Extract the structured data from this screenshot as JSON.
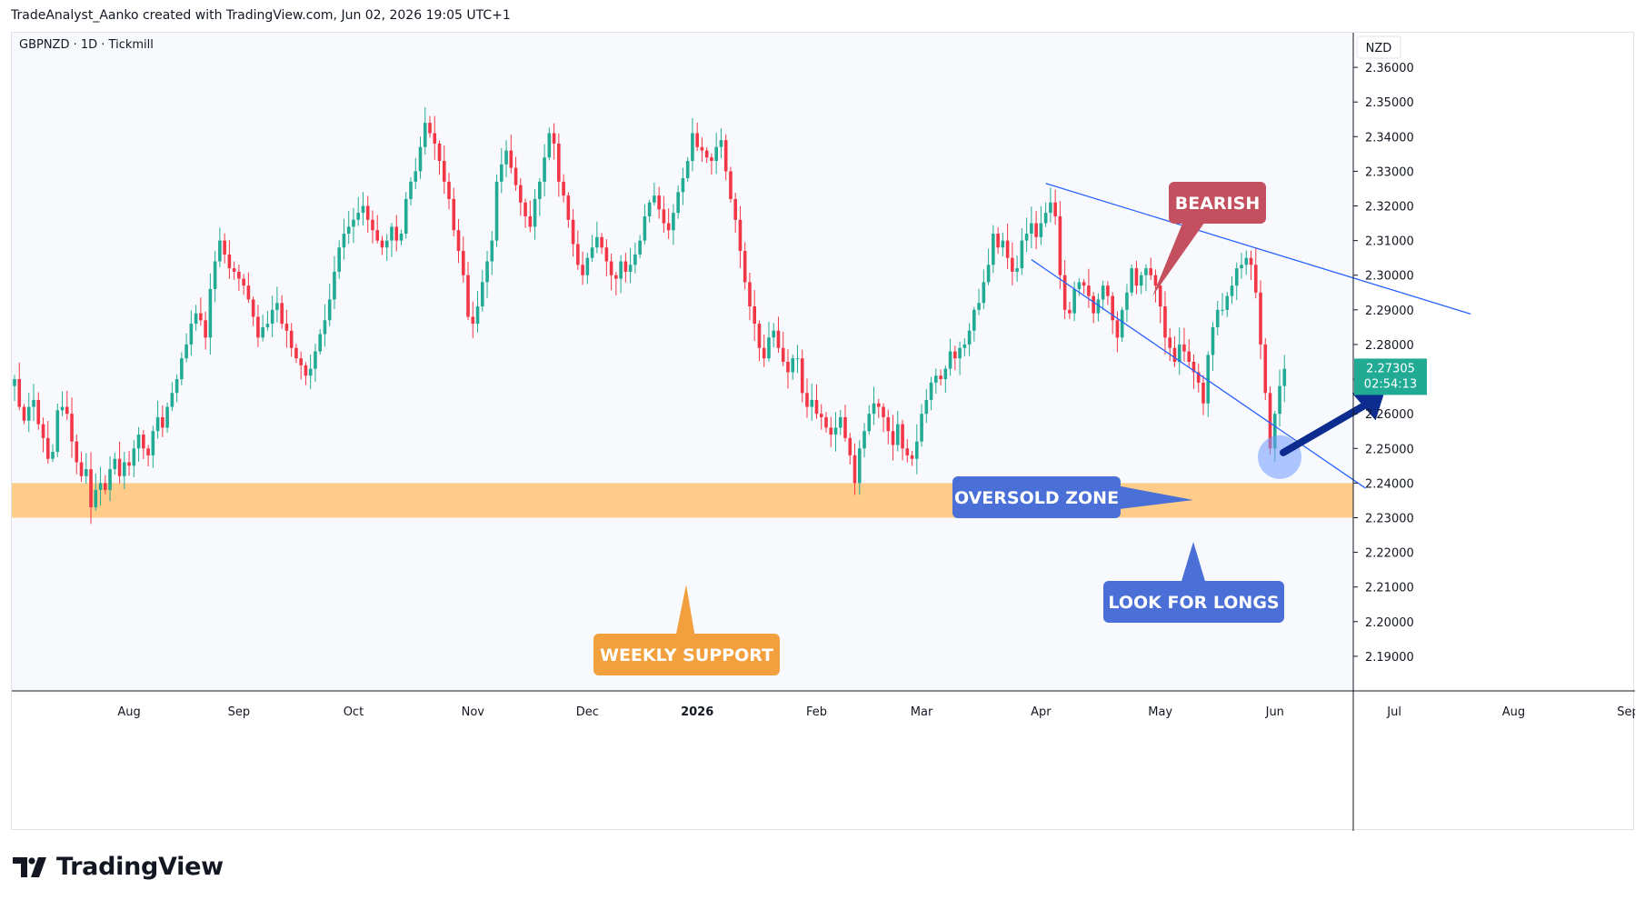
{
  "header": {
    "credit": "TradeAnalyst_Aanko created with TradingView.com, Jun 02, 2026 19:05 UTC+1"
  },
  "brand": {
    "name": "TradingView",
    "logo_icon": "tradingview-logo-icon"
  },
  "chart_data": {
    "type": "candlestick",
    "symbol_line": "GBPNZD · 1D · Tickmill",
    "currency": "NZD",
    "price_axis": {
      "range": [
        2.18,
        2.37
      ],
      "ticks": [
        "2.36000",
        "2.35000",
        "2.34000",
        "2.33000",
        "2.32000",
        "2.31000",
        "2.30000",
        "2.29000",
        "2.28000",
        "2.27000",
        "2.26000",
        "2.25000",
        "2.24000",
        "2.23000",
        "2.22000",
        "2.21000",
        "2.20000",
        "2.19000"
      ]
    },
    "time_axis": {
      "labels": [
        {
          "text": "Aug",
          "bar": 24,
          "bold": false
        },
        {
          "text": "Sep",
          "bar": 47,
          "bold": false
        },
        {
          "text": "Oct",
          "bar": 71,
          "bold": false
        },
        {
          "text": "Nov",
          "bar": 96,
          "bold": false
        },
        {
          "text": "Dec",
          "bar": 120,
          "bold": false
        },
        {
          "text": "2026",
          "bar": 143,
          "bold": true
        },
        {
          "text": "Feb",
          "bar": 168,
          "bold": false
        },
        {
          "text": "Mar",
          "bar": 190,
          "bold": false
        },
        {
          "text": "Apr",
          "bar": 215,
          "bold": false
        },
        {
          "text": "May",
          "bar": 240,
          "bold": false
        },
        {
          "text": "Jun",
          "bar": 264,
          "bold": false
        },
        {
          "text": "Jul",
          "bar": 289,
          "bold": false
        },
        {
          "text": "Aug",
          "bar": 314,
          "bold": false
        },
        {
          "text": "Sep",
          "bar": 338,
          "bold": false
        }
      ],
      "total_slots": 340
    },
    "last_price": {
      "price": 2.27305,
      "label": "2.27305",
      "countdown": "02:54:13",
      "color": "#22ab94"
    },
    "colors": {
      "up": "#22ab94",
      "down": "#f23645",
      "trendline": "#2962ff",
      "zone": "#ffcc8a"
    },
    "close_series": [
      2.27,
      2.262,
      2.258,
      2.262,
      2.264,
      2.257,
      2.253,
      2.247,
      2.249,
      2.261,
      2.262,
      2.26,
      2.252,
      2.246,
      2.242,
      2.244,
      2.233,
      2.238,
      2.24,
      2.238,
      2.244,
      2.247,
      2.242,
      2.246,
      2.245,
      2.25,
      2.254,
      2.25,
      2.248,
      2.255,
      2.259,
      2.256,
      2.262,
      2.266,
      2.27,
      2.276,
      2.28,
      2.286,
      2.289,
      2.287,
      2.282,
      2.296,
      2.304,
      2.31,
      2.306,
      2.302,
      2.301,
      2.299,
      2.297,
      2.293,
      2.288,
      2.282,
      2.285,
      2.286,
      2.29,
      2.292,
      2.286,
      2.284,
      2.279,
      2.276,
      2.274,
      2.271,
      2.273,
      2.278,
      2.283,
      2.287,
      2.293,
      2.301,
      2.308,
      2.312,
      2.314,
      2.316,
      2.318,
      2.32,
      2.316,
      2.313,
      2.31,
      2.308,
      2.31,
      2.314,
      2.31,
      2.312,
      2.322,
      2.327,
      2.33,
      2.337,
      2.344,
      2.341,
      2.338,
      2.333,
      2.327,
      2.322,
      2.313,
      2.307,
      2.3,
      2.288,
      2.286,
      2.291,
      2.298,
      2.304,
      2.31,
      2.327,
      2.332,
      2.336,
      2.331,
      2.326,
      2.321,
      2.317,
      2.314,
      2.322,
      2.327,
      2.334,
      2.341,
      2.338,
      2.327,
      2.323,
      2.316,
      2.309,
      2.303,
      2.3,
      2.305,
      2.308,
      2.311,
      2.308,
      2.304,
      2.3,
      2.299,
      2.304,
      2.301,
      2.303,
      2.306,
      2.31,
      2.317,
      2.321,
      2.323,
      2.319,
      2.315,
      2.313,
      2.318,
      2.324,
      2.328,
      2.333,
      2.341,
      2.337,
      2.336,
      2.334,
      2.333,
      2.337,
      2.339,
      2.33,
      2.322,
      2.316,
      2.307,
      2.298,
      2.291,
      2.286,
      2.279,
      2.276,
      2.282,
      2.284,
      2.279,
      2.275,
      2.272,
      2.276,
      2.276,
      2.266,
      2.262,
      2.264,
      2.26,
      2.259,
      2.256,
      2.254,
      2.256,
      2.259,
      2.253,
      2.248,
      2.24,
      2.25,
      2.255,
      2.26,
      2.263,
      2.262,
      2.259,
      2.255,
      2.251,
      2.257,
      2.25,
      2.248,
      2.247,
      2.252,
      2.26,
      2.264,
      2.269,
      2.271,
      2.27,
      2.273,
      2.278,
      2.276,
      2.279,
      2.28,
      2.284,
      2.29,
      2.292,
      2.298,
      2.303,
      2.312,
      2.308,
      2.31,
      2.305,
      2.301,
      2.302,
      2.31,
      2.312,
      2.315,
      2.311,
      2.315,
      2.318,
      2.321,
      2.317,
      2.3,
      2.29,
      2.289,
      2.296,
      2.298,
      2.297,
      2.294,
      2.289,
      2.293,
      2.297,
      2.294,
      2.287,
      2.282,
      2.29,
      2.295,
      2.302,
      2.297,
      2.3,
      2.302,
      2.3,
      2.297,
      2.291,
      2.282,
      2.279,
      2.275,
      2.28,
      2.278,
      2.275,
      2.272,
      2.269,
      2.263,
      2.277,
      2.285,
      2.29,
      2.29,
      2.294,
      2.297,
      2.302,
      2.303,
      2.305,
      2.303,
      2.295,
      2.28,
      2.266,
      2.25,
      2.26,
      2.268,
      2.273
    ]
  },
  "annotations": {
    "bearish": {
      "label": "BEARISH",
      "color": "#c4505f"
    },
    "oversold": {
      "label": "OVERSOLD ZONE",
      "color": "#4a6fd6"
    },
    "longs": {
      "label": "LOOK FOR LONGS",
      "color": "#4a6fd6"
    },
    "support": {
      "label": "WEEKLY SUPPORT",
      "color": "#f2a03d",
      "range": [
        2.23,
        2.24
      ]
    },
    "arrow": {
      "color": "#0d2c8f"
    }
  }
}
